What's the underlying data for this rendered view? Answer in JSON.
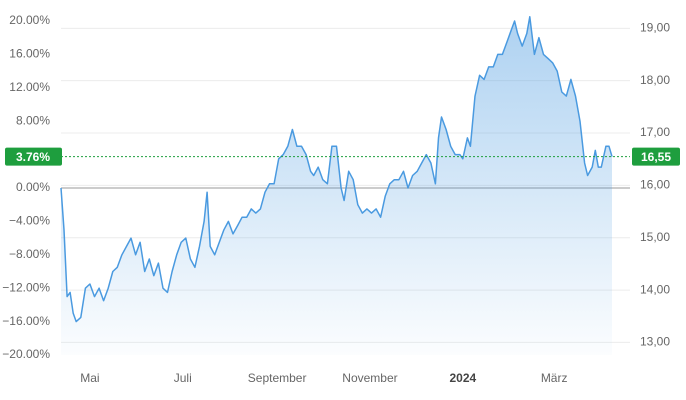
{
  "chart_data": {
    "type": "line",
    "x": [
      0,
      2,
      4,
      6,
      8,
      10,
      13,
      16,
      19,
      22,
      25,
      28,
      31,
      34,
      37,
      40,
      43,
      46,
      49,
      52,
      55,
      58,
      61,
      64,
      67,
      70,
      73,
      76,
      79,
      82,
      85,
      88,
      91,
      94,
      96,
      98,
      101,
      104,
      107,
      110,
      113,
      116,
      119,
      122,
      125,
      128,
      131,
      134,
      137,
      140,
      143,
      146,
      149,
      152,
      155,
      158,
      161,
      164,
      166,
      169,
      172,
      175,
      178,
      181,
      184,
      186,
      189,
      192,
      195,
      198,
      201,
      204,
      207,
      210,
      213,
      216,
      219,
      222,
      225,
      228,
      231,
      234,
      237,
      240,
      243,
      246,
      248,
      250,
      253,
      256,
      259,
      262,
      264,
      267,
      269,
      272,
      275,
      278,
      281,
      284,
      287,
      290,
      293,
      296,
      298,
      300,
      303,
      306,
      308,
      311,
      314,
      317,
      320,
      323,
      326,
      329,
      332,
      335,
      338,
      341,
      344,
      346,
      349,
      351,
      353,
      355,
      358,
      360,
      362
    ],
    "series": [
      {
        "color": "#4a9ae0",
        "values": [
          0,
          -5,
          -13,
          -12.5,
          -15,
          -16,
          -15.5,
          -12,
          -11.5,
          -13,
          -12,
          -13.5,
          -12,
          -10,
          -9.5,
          -8,
          -7,
          -6,
          -8,
          -6.5,
          -10,
          -8.5,
          -10.5,
          -9,
          -12,
          -12.5,
          -10,
          -8,
          -6.5,
          -6,
          -8.5,
          -9.5,
          -7,
          -4,
          -0.5,
          -7,
          -8,
          -6.5,
          -5,
          -4,
          -5.5,
          -4.5,
          -3.5,
          -3.5,
          -2.5,
          -3,
          -2.5,
          -0.5,
          0.5,
          0.5,
          3.5,
          4,
          5,
          7,
          5,
          5,
          4,
          2,
          1.5,
          2.5,
          1,
          0.5,
          5,
          5,
          0,
          -1.5,
          2,
          1,
          -2,
          -3,
          -2.5,
          -3,
          -2.5,
          -3.5,
          -1,
          0.5,
          1,
          1,
          2,
          0,
          1.5,
          2,
          3,
          4,
          3,
          0.5,
          6,
          8.5,
          7,
          5,
          4,
          4,
          3.5,
          6,
          5,
          11,
          13.5,
          13,
          14.5,
          14.5,
          16,
          16,
          17.5,
          19,
          20,
          18.5,
          17,
          18.5,
          20.5,
          16,
          18,
          16,
          15.5,
          15,
          14,
          11.5,
          11,
          13,
          11,
          8,
          3,
          1.5,
          2.5,
          4.5,
          2.5,
          2.5,
          5,
          5,
          3.76
        ]
      }
    ],
    "xlim": [
      0,
      362
    ],
    "xticks": [
      {
        "value": 19,
        "label": "Mai"
      },
      {
        "value": 80,
        "label": "Juli"
      },
      {
        "value": 142,
        "label": "September"
      },
      {
        "value": 203,
        "label": "November"
      },
      {
        "value": 264,
        "label": "2024"
      },
      {
        "value": 324,
        "label": "März"
      }
    ],
    "ylim": [
      -20,
      20
    ],
    "yticks": [
      {
        "value": 20,
        "label": "20.00%"
      },
      {
        "value": 16,
        "label": "16.00%"
      },
      {
        "value": 12,
        "label": "12.00%"
      },
      {
        "value": 8,
        "label": "8.00%"
      },
      {
        "value": 4,
        "label": "4.00%"
      },
      {
        "value": 0,
        "label": "0.00%"
      },
      {
        "value": -4,
        "label": "−4.00%"
      },
      {
        "value": -8,
        "label": "−8.00%"
      },
      {
        "value": -12,
        "label": "−12.00%"
      },
      {
        "value": -16,
        "label": "−16.00%"
      },
      {
        "value": -20,
        "label": "−20.00%"
      }
    ],
    "y2lim": [
      12.76,
      19.14
    ],
    "y2ticks": [
      {
        "value": 19,
        "label": "19,00"
      },
      {
        "value": 18,
        "label": "18,00"
      },
      {
        "value": 17,
        "label": "17,00"
      },
      {
        "value": 16,
        "label": "16,00"
      },
      {
        "value": 15,
        "label": "15,00"
      },
      {
        "value": 14,
        "label": "14,00"
      },
      {
        "value": 13,
        "label": "13,00"
      }
    ],
    "current": {
      "value": 3.76,
      "label": "3.76%",
      "color": "#1e9e3e"
    },
    "current_price": {
      "value": 16.55,
      "label": "16,55"
    },
    "grid": true
  }
}
